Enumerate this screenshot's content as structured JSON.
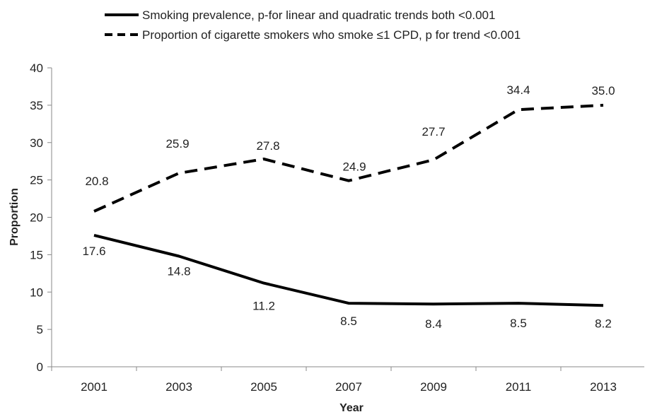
{
  "chart_data": {
    "type": "line",
    "title": "",
    "xlabel": "Year",
    "ylabel": "Proportion",
    "categories": [
      "2001",
      "2003",
      "2005",
      "2007",
      "2009",
      "2011",
      "2013"
    ],
    "ylim": [
      0,
      40
    ],
    "yticks": [
      "0",
      "5",
      "10",
      "15",
      "20",
      "25",
      "30",
      "35",
      "40"
    ],
    "grid": false,
    "legend_position": "top",
    "series": [
      {
        "name": "Smoking prevalence, p-for linear and quadratic trends both <0.001",
        "style": "solid",
        "color": "#000000",
        "values": [
          17.6,
          14.8,
          11.2,
          8.5,
          8.4,
          8.5,
          8.2
        ],
        "labels": [
          "17.6",
          "14.8",
          "11.2",
          "8.5",
          "8.4",
          "8.5",
          "8.2"
        ]
      },
      {
        "name": "Proportion of cigarette smokers who smoke ≤1 CPD, p for trend <0.001",
        "style": "dashed",
        "color": "#000000",
        "values": [
          20.8,
          25.9,
          27.8,
          24.9,
          27.7,
          34.4,
          35.0
        ],
        "labels": [
          "20.8",
          "25.9",
          "27.8",
          "24.9",
          "27.7",
          "34.4",
          "35.0"
        ]
      }
    ]
  }
}
